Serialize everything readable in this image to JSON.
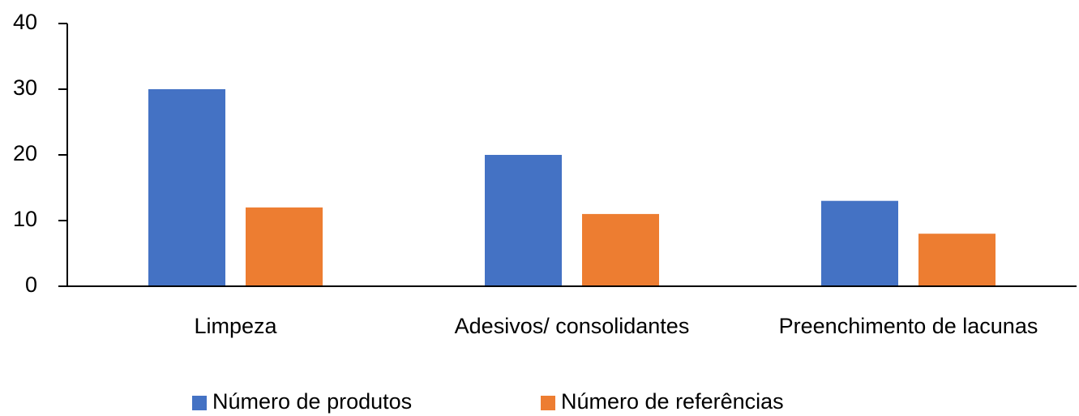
{
  "chart_data": {
    "type": "bar",
    "categories": [
      "Limpeza",
      "Adesivos/ consolidantes",
      "Preenchimento de lacunas"
    ],
    "series": [
      {
        "name": "Número de produtos",
        "color": "#4472c4",
        "values": [
          30,
          20,
          13
        ]
      },
      {
        "name": "Número de referências",
        "color": "#ed7d31",
        "values": [
          12,
          11,
          8
        ]
      }
    ],
    "ylim": [
      0,
      40
    ],
    "yticks": [
      0,
      10,
      20,
      30,
      40
    ],
    "grid": false,
    "legend": "bottom"
  }
}
